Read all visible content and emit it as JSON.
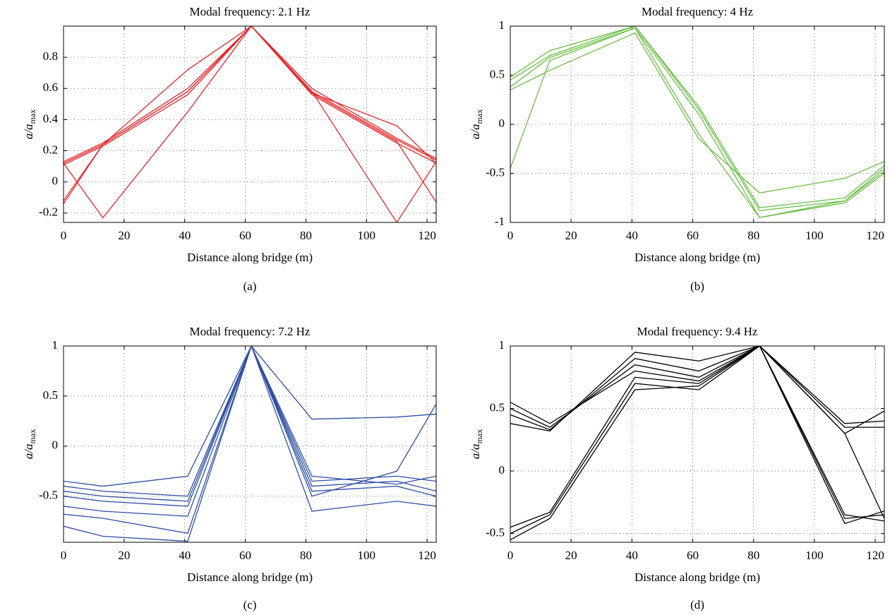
{
  "chart_data": [
    {
      "type": "line",
      "title": "Modal frequency: 2.1 Hz",
      "xlabel": "Distance along bridge (m)",
      "ylabel": "a/a",
      "ylabel_sub": "max",
      "caption": "(a)",
      "x": [
        0,
        13,
        41,
        62,
        82,
        110,
        123
      ],
      "xlim": [
        0,
        123
      ],
      "ylim": [
        -0.26,
        1
      ],
      "xticks": [
        0,
        20,
        40,
        60,
        80,
        100,
        120
      ],
      "yticks": [
        -0.2,
        0,
        0.2,
        0.4,
        0.6,
        0.8
      ],
      "grid": true,
      "series": [
        {
          "color": "#e8262a",
          "values": [
            0.11,
            0.23,
            0.56,
            1,
            0.56,
            0.25,
            0.12
          ]
        },
        {
          "color": "#e8262a",
          "values": [
            0.13,
            0.25,
            0.6,
            1,
            0.6,
            0.28,
            0.15
          ]
        },
        {
          "color": "#e8262a",
          "values": [
            0.12,
            0.24,
            0.58,
            1,
            0.58,
            0.27,
            0.14
          ]
        },
        {
          "color": "#e8262a",
          "values": [
            -0.12,
            0.24,
            0.72,
            1,
            0.57,
            0.36,
            0.12
          ]
        },
        {
          "color": "#e8262a",
          "values": [
            0.12,
            -0.23,
            0.45,
            1,
            0.58,
            -0.26,
            0.13
          ]
        },
        {
          "color": "#e8262a",
          "values": [
            -0.14,
            0.24,
            0.58,
            1,
            0.57,
            0.26,
            -0.13
          ]
        }
      ]
    },
    {
      "type": "line",
      "title": "Modal frequency: 4 Hz",
      "xlabel": "Distance along bridge (m)",
      "ylabel": "a/a",
      "ylabel_sub": "max",
      "caption": "(b)",
      "x": [
        0,
        13,
        41,
        62,
        82,
        110,
        123
      ],
      "xlim": [
        0,
        123
      ],
      "ylim": [
        -1,
        1
      ],
      "xticks": [
        0,
        20,
        40,
        60,
        80,
        100,
        120
      ],
      "yticks": [
        -1,
        -0.5,
        0,
        0.5,
        1
      ],
      "grid": true,
      "series": [
        {
          "color": "#6abf45",
          "values": [
            0.45,
            0.7,
            1,
            0.15,
            -0.88,
            -0.78,
            -0.45
          ]
        },
        {
          "color": "#6abf45",
          "values": [
            0.38,
            0.68,
            0.98,
            0.1,
            -0.95,
            -0.8,
            -0.5
          ]
        },
        {
          "color": "#6abf45",
          "values": [
            0.48,
            0.75,
            1,
            0.18,
            -0.85,
            -0.75,
            -0.42
          ]
        },
        {
          "color": "#6abf45",
          "values": [
            -0.45,
            0.65,
            0.98,
            -0.1,
            -0.95,
            -0.78,
            -0.48
          ]
        },
        {
          "color": "#6abf45",
          "values": [
            0.35,
            0.55,
            0.93,
            -0.15,
            -0.7,
            -0.55,
            -0.38
          ]
        }
      ]
    },
    {
      "type": "line",
      "title": "Modal frequency: 7.2 Hz",
      "xlabel": "Distance along bridge (m)",
      "ylabel": "a/a",
      "ylabel_sub": "max",
      "caption": "(c)",
      "x": [
        0,
        13,
        41,
        62,
        82,
        110,
        123
      ],
      "xlim": [
        0,
        123
      ],
      "ylim": [
        -0.96,
        1
      ],
      "xticks": [
        0,
        20,
        40,
        60,
        80,
        100,
        120
      ],
      "yticks": [
        -0.5,
        0,
        0.5,
        1
      ],
      "grid": true,
      "series": [
        {
          "color": "#2e4fa3",
          "values": [
            -0.35,
            -0.4,
            -0.3,
            1,
            0.27,
            0.29,
            0.32
          ]
        },
        {
          "color": "#2e4fa3",
          "values": [
            -0.5,
            -0.55,
            -0.6,
            1,
            -0.35,
            -0.3,
            -0.35
          ]
        },
        {
          "color": "#2e4fa3",
          "values": [
            -0.6,
            -0.65,
            -0.7,
            1,
            -0.45,
            -0.4,
            -0.5
          ]
        },
        {
          "color": "#2e4fa3",
          "values": [
            -0.8,
            -0.9,
            -0.95,
            1,
            -0.4,
            -0.35,
            -0.45
          ]
        },
        {
          "color": "#2e4fa3",
          "values": [
            -0.45,
            -0.5,
            -0.55,
            1,
            -0.5,
            -0.25,
            0.42
          ]
        },
        {
          "color": "#2e4fa3",
          "values": [
            -0.68,
            -0.72,
            -0.87,
            1,
            -0.65,
            -0.55,
            -0.6
          ]
        },
        {
          "color": "#2e4fa3",
          "values": [
            -0.4,
            -0.45,
            -0.5,
            1,
            -0.3,
            -0.38,
            -0.3
          ]
        }
      ]
    },
    {
      "type": "line",
      "title": "Modal frequency: 9.4 Hz",
      "xlabel": "Distance along bridge (m)",
      "ylabel": "a/a",
      "ylabel_sub": "max",
      "caption": "(d)",
      "x": [
        0,
        13,
        41,
        62,
        82,
        110,
        123
      ],
      "xlim": [
        0,
        123
      ],
      "ylim": [
        -0.57,
        1
      ],
      "xticks": [
        0,
        20,
        40,
        60,
        80,
        100,
        120
      ],
      "yticks": [
        -0.5,
        0,
        0.5,
        1
      ],
      "grid": true,
      "series": [
        {
          "color": "#000000",
          "values": [
            0.5,
            0.35,
            0.85,
            0.75,
            1,
            0.35,
            0.35
          ]
        },
        {
          "color": "#000000",
          "values": [
            0.45,
            0.33,
            0.9,
            0.8,
            1,
            0.38,
            0.4
          ]
        },
        {
          "color": "#000000",
          "values": [
            0.38,
            0.32,
            0.95,
            0.88,
            1,
            0.3,
            0.48
          ]
        },
        {
          "color": "#000000",
          "values": [
            -0.5,
            -0.35,
            0.7,
            0.65,
            1,
            -0.35,
            -0.4
          ]
        },
        {
          "color": "#000000",
          "values": [
            -0.45,
            -0.33,
            0.75,
            0.7,
            1,
            -0.38,
            -0.35
          ]
        },
        {
          "color": "#000000",
          "values": [
            -0.55,
            -0.38,
            0.65,
            0.68,
            1,
            -0.42,
            -0.32
          ]
        },
        {
          "color": "#000000",
          "values": [
            0.55,
            0.38,
            0.8,
            0.72,
            1,
            0.3,
            -0.38
          ]
        }
      ]
    }
  ]
}
